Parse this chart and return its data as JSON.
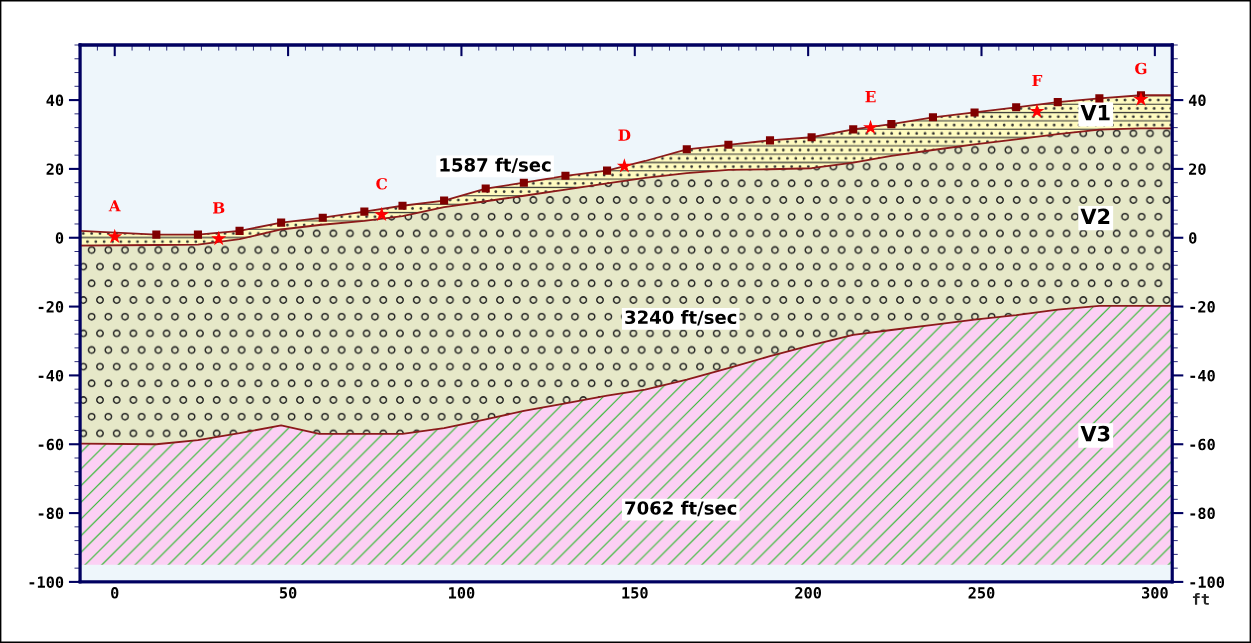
{
  "chart_data": {
    "type": "line",
    "xlabel": "ft",
    "xlim": [
      -10,
      305
    ],
    "xticks": [
      0,
      50,
      100,
      150,
      200,
      250,
      300
    ],
    "ylim": [
      -100,
      56
    ],
    "yticks": [
      -100,
      -80,
      -60,
      -40,
      -20,
      0,
      20,
      40
    ],
    "y2lim": [
      -100,
      56
    ],
    "y2ticks": [
      -100,
      -80,
      -60,
      -40,
      -20,
      0,
      20,
      40
    ],
    "grid": false,
    "series": [
      {
        "color": "#8b1a1a",
        "x": [
          -10,
          12,
          24,
          36,
          48,
          59,
          72,
          83,
          95,
          107,
          118,
          130,
          142,
          153,
          165,
          177,
          189,
          201,
          213,
          224,
          236,
          248,
          260,
          272,
          284,
          296,
          305
        ],
        "values": [
          2,
          0.9,
          0.9,
          2,
          4.4,
          5.7,
          7.6,
          9.3,
          10.8,
          14.3,
          16,
          18,
          19.5,
          22.3,
          25.7,
          27,
          28.3,
          29.2,
          31.5,
          33,
          35,
          36.4,
          37.9,
          39.4,
          40.5,
          41.4,
          41.4
        ],
        "upper": [
          2,
          0.9,
          0.9,
          2,
          4.4,
          5.7,
          7.6,
          9.3,
          10.8,
          14.3,
          16,
          18,
          19.5,
          22.3,
          25.7,
          27,
          28.3,
          29.2,
          31.5,
          33,
          35,
          36.4,
          37.9,
          39.4,
          40.5,
          41.4,
          41.4
        ],
        "lower": [
          -2.3,
          -2.1,
          -2,
          -0.4,
          2.4,
          3.7,
          4.9,
          6.3,
          8.9,
          10.6,
          12.2,
          14,
          15.8,
          17.4,
          18.8,
          19.7,
          19.9,
          20.2,
          21.8,
          23.8,
          25.5,
          27.1,
          28.6,
          30.1,
          31.4,
          31.8,
          31.8
        ]
      },
      {
        "color": "#8b1a1a",
        "x": [
          -10,
          12,
          24,
          36,
          48,
          59,
          72,
          83,
          95,
          107,
          118,
          130,
          142,
          153,
          165,
          177,
          189,
          201,
          213,
          224,
          236,
          248,
          260,
          272,
          284,
          296,
          305
        ],
        "values": [
          -2.3,
          -2.1,
          -2,
          -0.4,
          2.4,
          3.7,
          4.9,
          6.3,
          8.9,
          10.6,
          12.2,
          14,
          15.8,
          17.4,
          18.8,
          19.7,
          19.9,
          20.2,
          21.8,
          23.8,
          25.5,
          27.1,
          28.6,
          30.1,
          31.4,
          31.8,
          31.8
        ],
        "upper": [
          -2.3,
          -2.1,
          -2,
          -0.4,
          2.4,
          3.7,
          4.9,
          6.3,
          8.9,
          10.6,
          12.2,
          14,
          15.8,
          17.4,
          18.8,
          19.7,
          19.9,
          20.2,
          21.8,
          23.8,
          25.5,
          27.1,
          28.6,
          30.1,
          31.4,
          31.8,
          31.8
        ],
        "lower": [
          -59.8,
          -60,
          -58.8,
          -56.8,
          -54.5,
          -57,
          -57,
          -57,
          -55.3,
          -52.8,
          -50.3,
          -48.1,
          -45.9,
          -44.1,
          -41.2,
          -37.9,
          -34.4,
          -31.2,
          -28.2,
          -26.8,
          -25.3,
          -23.8,
          -22.5,
          -20.9,
          -19.8,
          -19.8,
          -19.8
        ]
      },
      {
        "color": "#8b1a1a",
        "x": [
          -10,
          12,
          24,
          36,
          48,
          59,
          72,
          83,
          95,
          107,
          118,
          130,
          142,
          153,
          165,
          177,
          189,
          201,
          213,
          224,
          236,
          248,
          260,
          272,
          284,
          296,
          305
        ],
        "values": [
          -59.8,
          -60,
          -58.8,
          -56.8,
          -54.5,
          -57,
          -57,
          -57,
          -55.3,
          -52.8,
          -50.3,
          -48.1,
          -45.9,
          -44.1,
          -41.2,
          -37.9,
          -34.4,
          -31.2,
          -28.2,
          -26.8,
          -25.3,
          -23.8,
          -22.5,
          -20.9,
          -19.8,
          -19.8,
          -19.8
        ],
        "upper": [
          -59.8,
          -60,
          -58.8,
          -56.8,
          -54.5,
          -57,
          -57,
          -57,
          -55.3,
          -52.8,
          -50.3,
          -48.1,
          -45.9,
          -44.1,
          -41.2,
          -37.9,
          -34.4,
          -31.2,
          -28.2,
          -26.8,
          -25.3,
          -23.8,
          -22.5,
          -20.9,
          -19.8,
          -19.8,
          -19.8
        ],
        "lower": [
          -95,
          -95,
          -95,
          -95,
          -95,
          -95,
          -95,
          -95,
          -95,
          -95,
          -95,
          -95,
          -95,
          -95,
          -95,
          -95,
          -95,
          -95,
          -95,
          -95,
          -95,
          -95,
          -95,
          -95,
          -95,
          -95,
          -95
        ]
      },
      {
        "type": "scatter",
        "marker": "square",
        "color": "#800000",
        "x": [
          12,
          24,
          36,
          48,
          60,
          72,
          83,
          95,
          107,
          118,
          130,
          142,
          165,
          177,
          189,
          201,
          213,
          224,
          236,
          248,
          260,
          272,
          284,
          296
        ],
        "values": [
          0.9,
          0.9,
          2,
          4.4,
          5.8,
          7.6,
          9.3,
          10.8,
          14.3,
          16,
          18,
          19.5,
          25.7,
          27,
          28.3,
          29.2,
          31.5,
          33,
          35,
          36.4,
          37.9,
          39.4,
          40.5,
          41.4
        ]
      },
      {
        "type": "scatter",
        "marker": "star",
        "color": "#ff0000",
        "x": [
          0,
          30,
          77,
          147,
          218,
          266,
          296
        ],
        "values": [
          0.3,
          -0.3,
          6.7,
          20.8,
          32,
          36.7,
          40.2
        ],
        "value_labels": [
          "A",
          "B",
          "C",
          "D",
          "E",
          "F",
          "G"
        ]
      }
    ],
    "annotations": [
      "1587 ft/sec",
      "3240 ft/sec",
      "7062 ft/sec",
      "V1",
      "V2",
      "V3"
    ]
  }
}
